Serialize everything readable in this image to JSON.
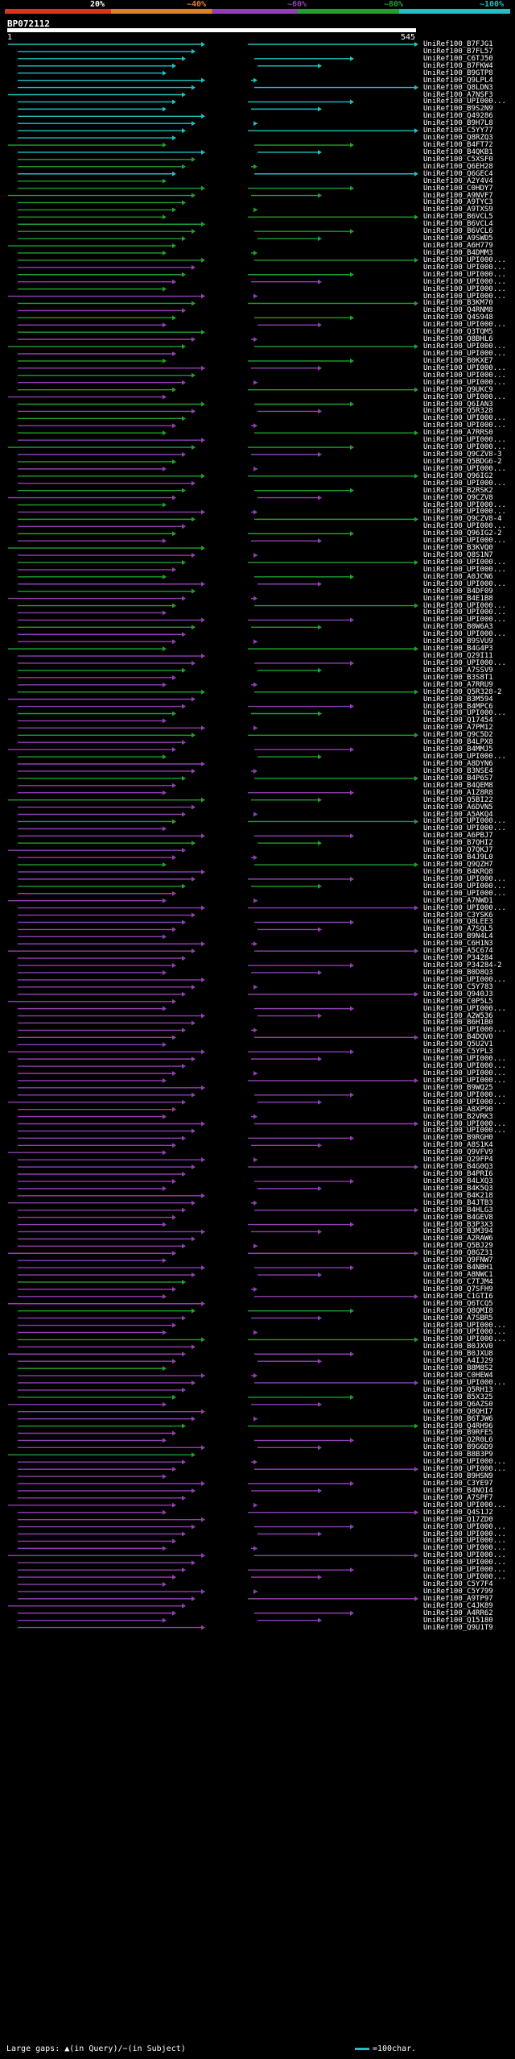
{
  "legend": {
    "percent_labels": [
      "20%",
      "~40%",
      "~60%",
      "~80%",
      "~100%"
    ],
    "colors": [
      "#e03020",
      "#e08020",
      "#9040b0",
      "#20a030",
      "#20c0c0"
    ]
  },
  "query": {
    "name": "BP072112",
    "range_start": "1",
    "range_end": "545"
  },
  "footer": {
    "gaps_text": "Large gaps: ▲(in Query)/−(in Subject)",
    "scale_text": "=100char."
  },
  "hits": [
    "UniRef100_B7FJG1",
    "UniRef100_B7FL57",
    "UniRef100_C6TJ50",
    "UniRef100_B7FKW4",
    "UniRef100_B9GTP8",
    "UniRef100_Q9LPL4",
    "UniRef100_Q8LDN3",
    "UniRef100_A7NSF3",
    "UniRef100_UPI000...",
    "UniRef100_B9S2N9",
    "UniRef100_Q49286",
    "UniRef100_B9H7L8",
    "UniRef100_C5YY77",
    "UniRef100_Q8RZQ3",
    "UniRef100_B4FT72",
    "UniRef100_B4QKB1",
    "UniRef100_C5XSF0",
    "UniRef100_Q6EH28",
    "UniRef100_Q6GEC4",
    "UniRef100_A2Y4V4",
    "UniRef100_C0HDY7",
    "UniRef100_A9NVF7",
    "UniRef100_A9TYC3",
    "UniRef100_A9TXS9",
    "UniRef100_B6VCL5",
    "UniRef100_B6VCL4",
    "UniRef100_B6VCL6",
    "UniRef100_A9SWD5",
    "UniRef100_A6H779",
    "UniRef100_B4DMM3",
    "UniRef100_UPI000...",
    "UniRef100_UPI000...",
    "UniRef100_UPI000...",
    "UniRef100_UPI000...",
    "UniRef100_UPI000...",
    "UniRef100_UPI000...",
    "UniRef100_B3KM70",
    "UniRef100_Q4RNM8",
    "UniRef100_Q4S948",
    "UniRef100_UPI000...",
    "UniRef100_Q3TQM5",
    "UniRef100_Q8BHL6",
    "UniRef100_UPI000...",
    "UniRef100_UPI000...",
    "UniRef100_B0KXE7",
    "UniRef100_UPI000...",
    "UniRef100_UPI000...",
    "UniRef100_UPI000...",
    "UniRef100_Q9UKC9",
    "UniRef100_UPI000...",
    "UniRef100_Q6IAN3",
    "UniRef100_Q5R328",
    "UniRef100_UPI000...",
    "UniRef100_UPI000...",
    "UniRef100_A7RRS0",
    "UniRef100_UPI000...",
    "UniRef100_UPI000...",
    "UniRef100_Q9CZV8-3",
    "UniRef100_Q5BDG6-2",
    "UniRef100_UPI000...",
    "UniRef100_Q96IG2",
    "UniRef100_UPI000...",
    "UniRef100_B2RSK2",
    "UniRef100_Q9CZV8",
    "UniRef100_UPI000...",
    "UniRef100_UPI000...",
    "UniRef100_Q9CZV8-4",
    "UniRef100_UPI000...",
    "UniRef100_Q96IG2-2",
    "UniRef100_UPI000...",
    "UniRef100_B3KVQ0",
    "UniRef100_Q8S1N7",
    "UniRef100_UPI000...",
    "UniRef100_UPI000...",
    "UniRef100_A0JCN6",
    "UniRef100_UPI000...",
    "UniRef100_B4DF09",
    "UniRef100_B4E1B8",
    "UniRef100_UPI000...",
    "UniRef100_UPI000...",
    "UniRef100_UPI000...",
    "UniRef100_B0W6A3",
    "UniRef100_UPI000...",
    "UniRef100_B9SVU9",
    "UniRef100_B4G4P3",
    "UniRef100_Q29I11",
    "UniRef100_UPI000...",
    "UniRef100_A7SSV9",
    "UniRef100_B3S8T1",
    "UniRef100_A7RRU9",
    "UniRef100_Q5R328-2",
    "UniRef100_B3M594",
    "UniRef100_B4MPC6",
    "UniRef100_UPI000...",
    "UniRef100_Q17454",
    "UniRef100_A7PM12",
    "UniRef100_Q9C5D2",
    "UniRef100_B4LPX8",
    "UniRef100_B4MMJ5",
    "UniRef100_UPI000...",
    "UniRef100_A8DYN6",
    "UniRef100_B3NSE4",
    "UniRef100_B4P6S7",
    "UniRef100_B4QEM8",
    "UniRef100_A1Z8R8",
    "UniRef100_Q5BI22",
    "UniRef100_A6DVN5",
    "UniRef100_A5AKQ4",
    "UniRef100_UPI000...",
    "UniRef100_UPI000...",
    "UniRef100_A6PBJ7",
    "UniRef100_B7QHI2",
    "UniRef100_Q7QKJ7",
    "UniRef100_B4J9L0",
    "UniRef100_Q9QZH7",
    "UniRef100_B4KRQ8",
    "UniRef100_UPI000...",
    "UniRef100_UPI000...",
    "UniRef100_UPI000...",
    "UniRef100_A7NWD1",
    "UniRef100_UPI000...",
    "UniRef100_C3YSK6",
    "UniRef100_Q8LEE3",
    "UniRef100_A7SQL5",
    "UniRef100_B9N4L4",
    "UniRef100_C6H1N3",
    "UniRef100_A5C674",
    "UniRef100_P34284",
    "UniRef100_P34284-2",
    "UniRef100_B0D8Q3",
    "UniRef100_UPI000...",
    "UniRef100_C5Y783",
    "UniRef100_Q940J3",
    "UniRef100_C0P5L5",
    "UniRef100_UPI000...",
    "UniRef100_A2W536",
    "UniRef100_B6H1B0",
    "UniRef100_UPI000...",
    "UniRef100_B4DQV0",
    "UniRef100_Q5U2V1",
    "UniRef100_C5YPL3",
    "UniRef100_UPI000...",
    "UniRef100_UPI000...",
    "UniRef100_UPI000...",
    "UniRef100_UPI000...",
    "UniRef100_B9WQ25",
    "UniRef100_UPI000...",
    "UniRef100_UPI000...",
    "UniRef100_A8XP90",
    "UniRef100_B2VRK3",
    "UniRef100_UPI000...",
    "UniRef100_UPI000...",
    "UniRef100_B9RGH0",
    "UniRef100_A8S1K4",
    "UniRef100_Q9VFV9",
    "UniRef100_Q29FP4",
    "UniRef100_B4G0Q3",
    "UniRef100_B4PRI6",
    "UniRef100_B4LXQ3",
    "UniRef100_B4K5Q3",
    "UniRef100_B4K218",
    "UniRef100_B4JTB3",
    "UniRef100_B4HLG3",
    "UniRef100_B4GEV8",
    "UniRef100_B3P3X3",
    "UniRef100_B3M394",
    "UniRef100_A2RAW6",
    "UniRef100_Q5BJ29",
    "UniRef100_Q8GZ31",
    "UniRef100_Q9FNW7",
    "UniRef100_B4NBH1",
    "UniRef100_A8NWC1",
    "UniRef100_C7TJM4",
    "UniRef100_Q7SFH9",
    "UniRef100_C1GTI6",
    "UniRef100_Q6TCQ5",
    "UniRef100_Q8QMI8",
    "UniRef100_A7SBR5",
    "UniRef100_UPI000...",
    "UniRef100_UPI000...",
    "UniRef100_UPI000...",
    "UniRef100_B0JXV0",
    "UniRef100_B0JXU8",
    "UniRef100_A4IJ29",
    "UniRef100_B8M8S2",
    "UniRef100_C0HEW4",
    "UniRef100_UPI000...",
    "UniRef100_Q5RH13",
    "UniRef100_B5X325",
    "UniRef100_Q6AZS0",
    "UniRef100_Q8QHI7",
    "UniRef100_B6TJW6",
    "UniRef100_Q4RH96",
    "UniRef100_B9RFE5",
    "UniRef100_Q2R0L6",
    "UniRef100_B9G6D9",
    "UniRef100_B8B3P9",
    "UniRef100_UPI000...",
    "UniRef100_UPI000...",
    "UniRef100_B9HSN9",
    "UniRef100_C3YE97",
    "UniRef100_B4NOI4",
    "UniRef100_A7SPF7",
    "UniRef100_UPI000...",
    "UniRef100_Q4S1J2",
    "UniRef100_Q17ZD0",
    "UniRef100_UPI000...",
    "UniRef100_UPI000...",
    "UniRef100_UPI000...",
    "UniRef100_UPI000...",
    "UniRef100_UPI000...",
    "UniRef100_UPI000...",
    "UniRef100_UPI000...",
    "UniRef100_UPI000...",
    "UniRef100_C5Y7F4",
    "UniRef100_C5Y799",
    "UniRef100_A9TP97",
    "UniRef100_C4JK89",
    "UniRef100_A4RR62",
    "UniRef100_Q15180",
    "UniRef100_Q9U1T9"
  ]
}
